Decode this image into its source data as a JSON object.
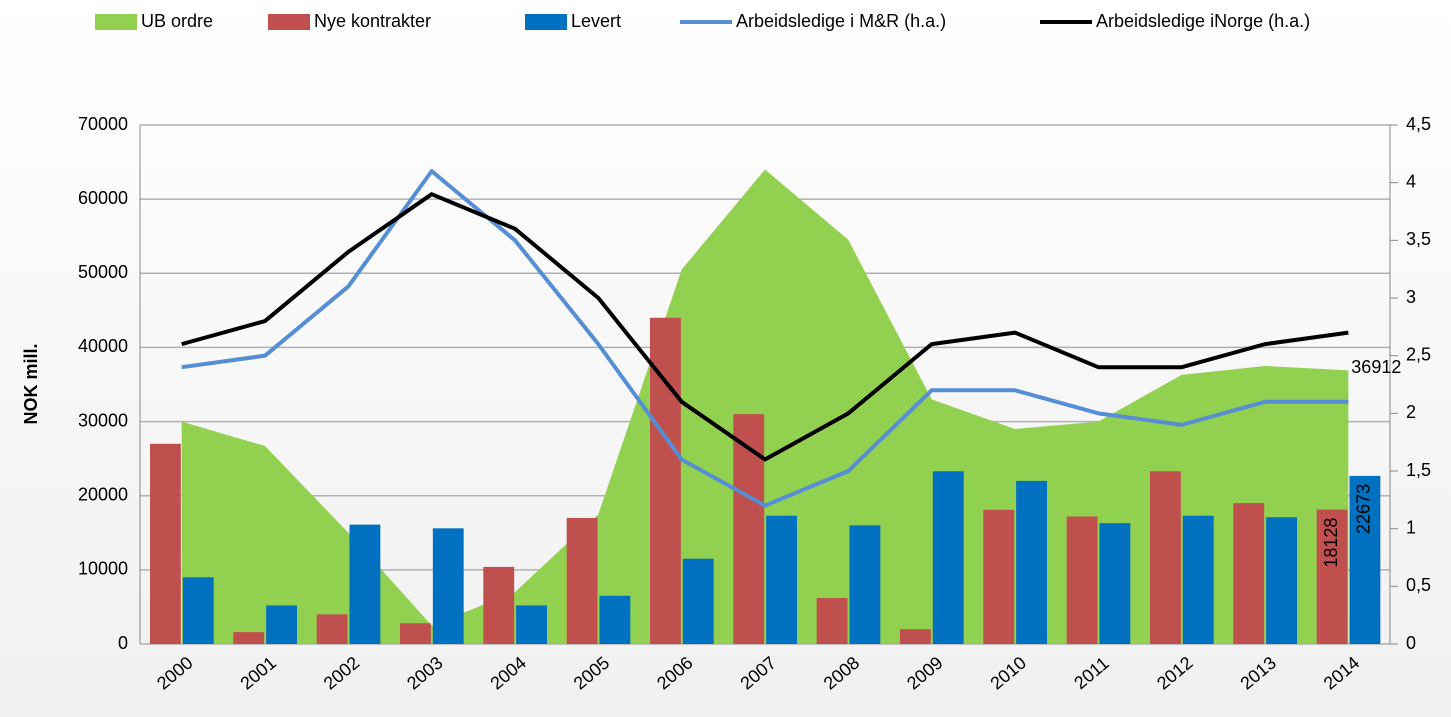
{
  "chart_data": {
    "type": "combo",
    "categories": [
      "2000",
      "2001",
      "2002",
      "2003",
      "2004",
      "2005",
      "2006",
      "2007",
      "2008",
      "2009",
      "2010",
      "2011",
      "2012",
      "2013",
      "2014"
    ],
    "ylabel": "NOK mill.",
    "ylim": [
      0,
      70000
    ],
    "yticks": [
      0,
      10000,
      20000,
      30000,
      40000,
      50000,
      60000,
      70000
    ],
    "y2lim": [
      0,
      4.5
    ],
    "y2ticks": [
      0,
      {
        "value": 0.5,
        "label": "0,5"
      },
      1,
      {
        "value": 1.5,
        "label": "1,5"
      },
      2,
      {
        "value": 2.5,
        "label": "2,5"
      },
      3,
      {
        "value": 3.5,
        "label": "3,5"
      },
      4,
      {
        "value": 4.5,
        "label": "4,5"
      }
    ],
    "grid": true,
    "legend": "top",
    "series": [
      {
        "name": "UB ordre",
        "kind": "area",
        "color": "#92d050",
        "values": [
          30000,
          26700,
          15000,
          2500,
          7000,
          17500,
          50500,
          64000,
          54500,
          33000,
          29000,
          30000,
          36300,
          37500,
          36912
        ],
        "value_labels": [
          null,
          null,
          null,
          null,
          null,
          null,
          null,
          null,
          null,
          null,
          null,
          null,
          null,
          null,
          "36912"
        ]
      },
      {
        "name": "Nye kontrakter",
        "kind": "bar",
        "color": "#c0504d",
        "values": [
          27000,
          1600,
          4000,
          2800,
          10400,
          17000,
          44000,
          31000,
          6200,
          2000,
          18100,
          17200,
          23300,
          19000,
          18128
        ],
        "value_labels": [
          null,
          null,
          null,
          null,
          null,
          null,
          null,
          null,
          null,
          null,
          null,
          null,
          null,
          null,
          "18128"
        ]
      },
      {
        "name": "Levert",
        "kind": "bar",
        "color": "#0070c0",
        "values": [
          9000,
          5200,
          16100,
          15600,
          5200,
          6500,
          11500,
          17300,
          16000,
          23300,
          22000,
          16300,
          17300,
          17100,
          22673
        ],
        "value_labels": [
          null,
          null,
          null,
          null,
          null,
          null,
          null,
          null,
          null,
          null,
          null,
          null,
          null,
          null,
          "22673"
        ]
      },
      {
        "name": "Arbeidsledige i M&R (h.a.)",
        "kind": "line",
        "axis": "y2",
        "color": "#558ed5",
        "values": [
          2.4,
          2.5,
          3.1,
          4.1,
          3.5,
          2.6,
          1.6,
          1.2,
          1.5,
          2.2,
          2.2,
          2.0,
          1.9,
          2.1,
          2.1
        ]
      },
      {
        "name": "Arbeidsledige iNorge (h.a.)",
        "kind": "line",
        "axis": "y2",
        "color": "#000000",
        "values": [
          2.6,
          2.8,
          3.4,
          3.9,
          3.6,
          3.0,
          2.1,
          1.6,
          2.0,
          2.6,
          2.7,
          2.4,
          2.4,
          2.6,
          2.7
        ]
      }
    ]
  }
}
